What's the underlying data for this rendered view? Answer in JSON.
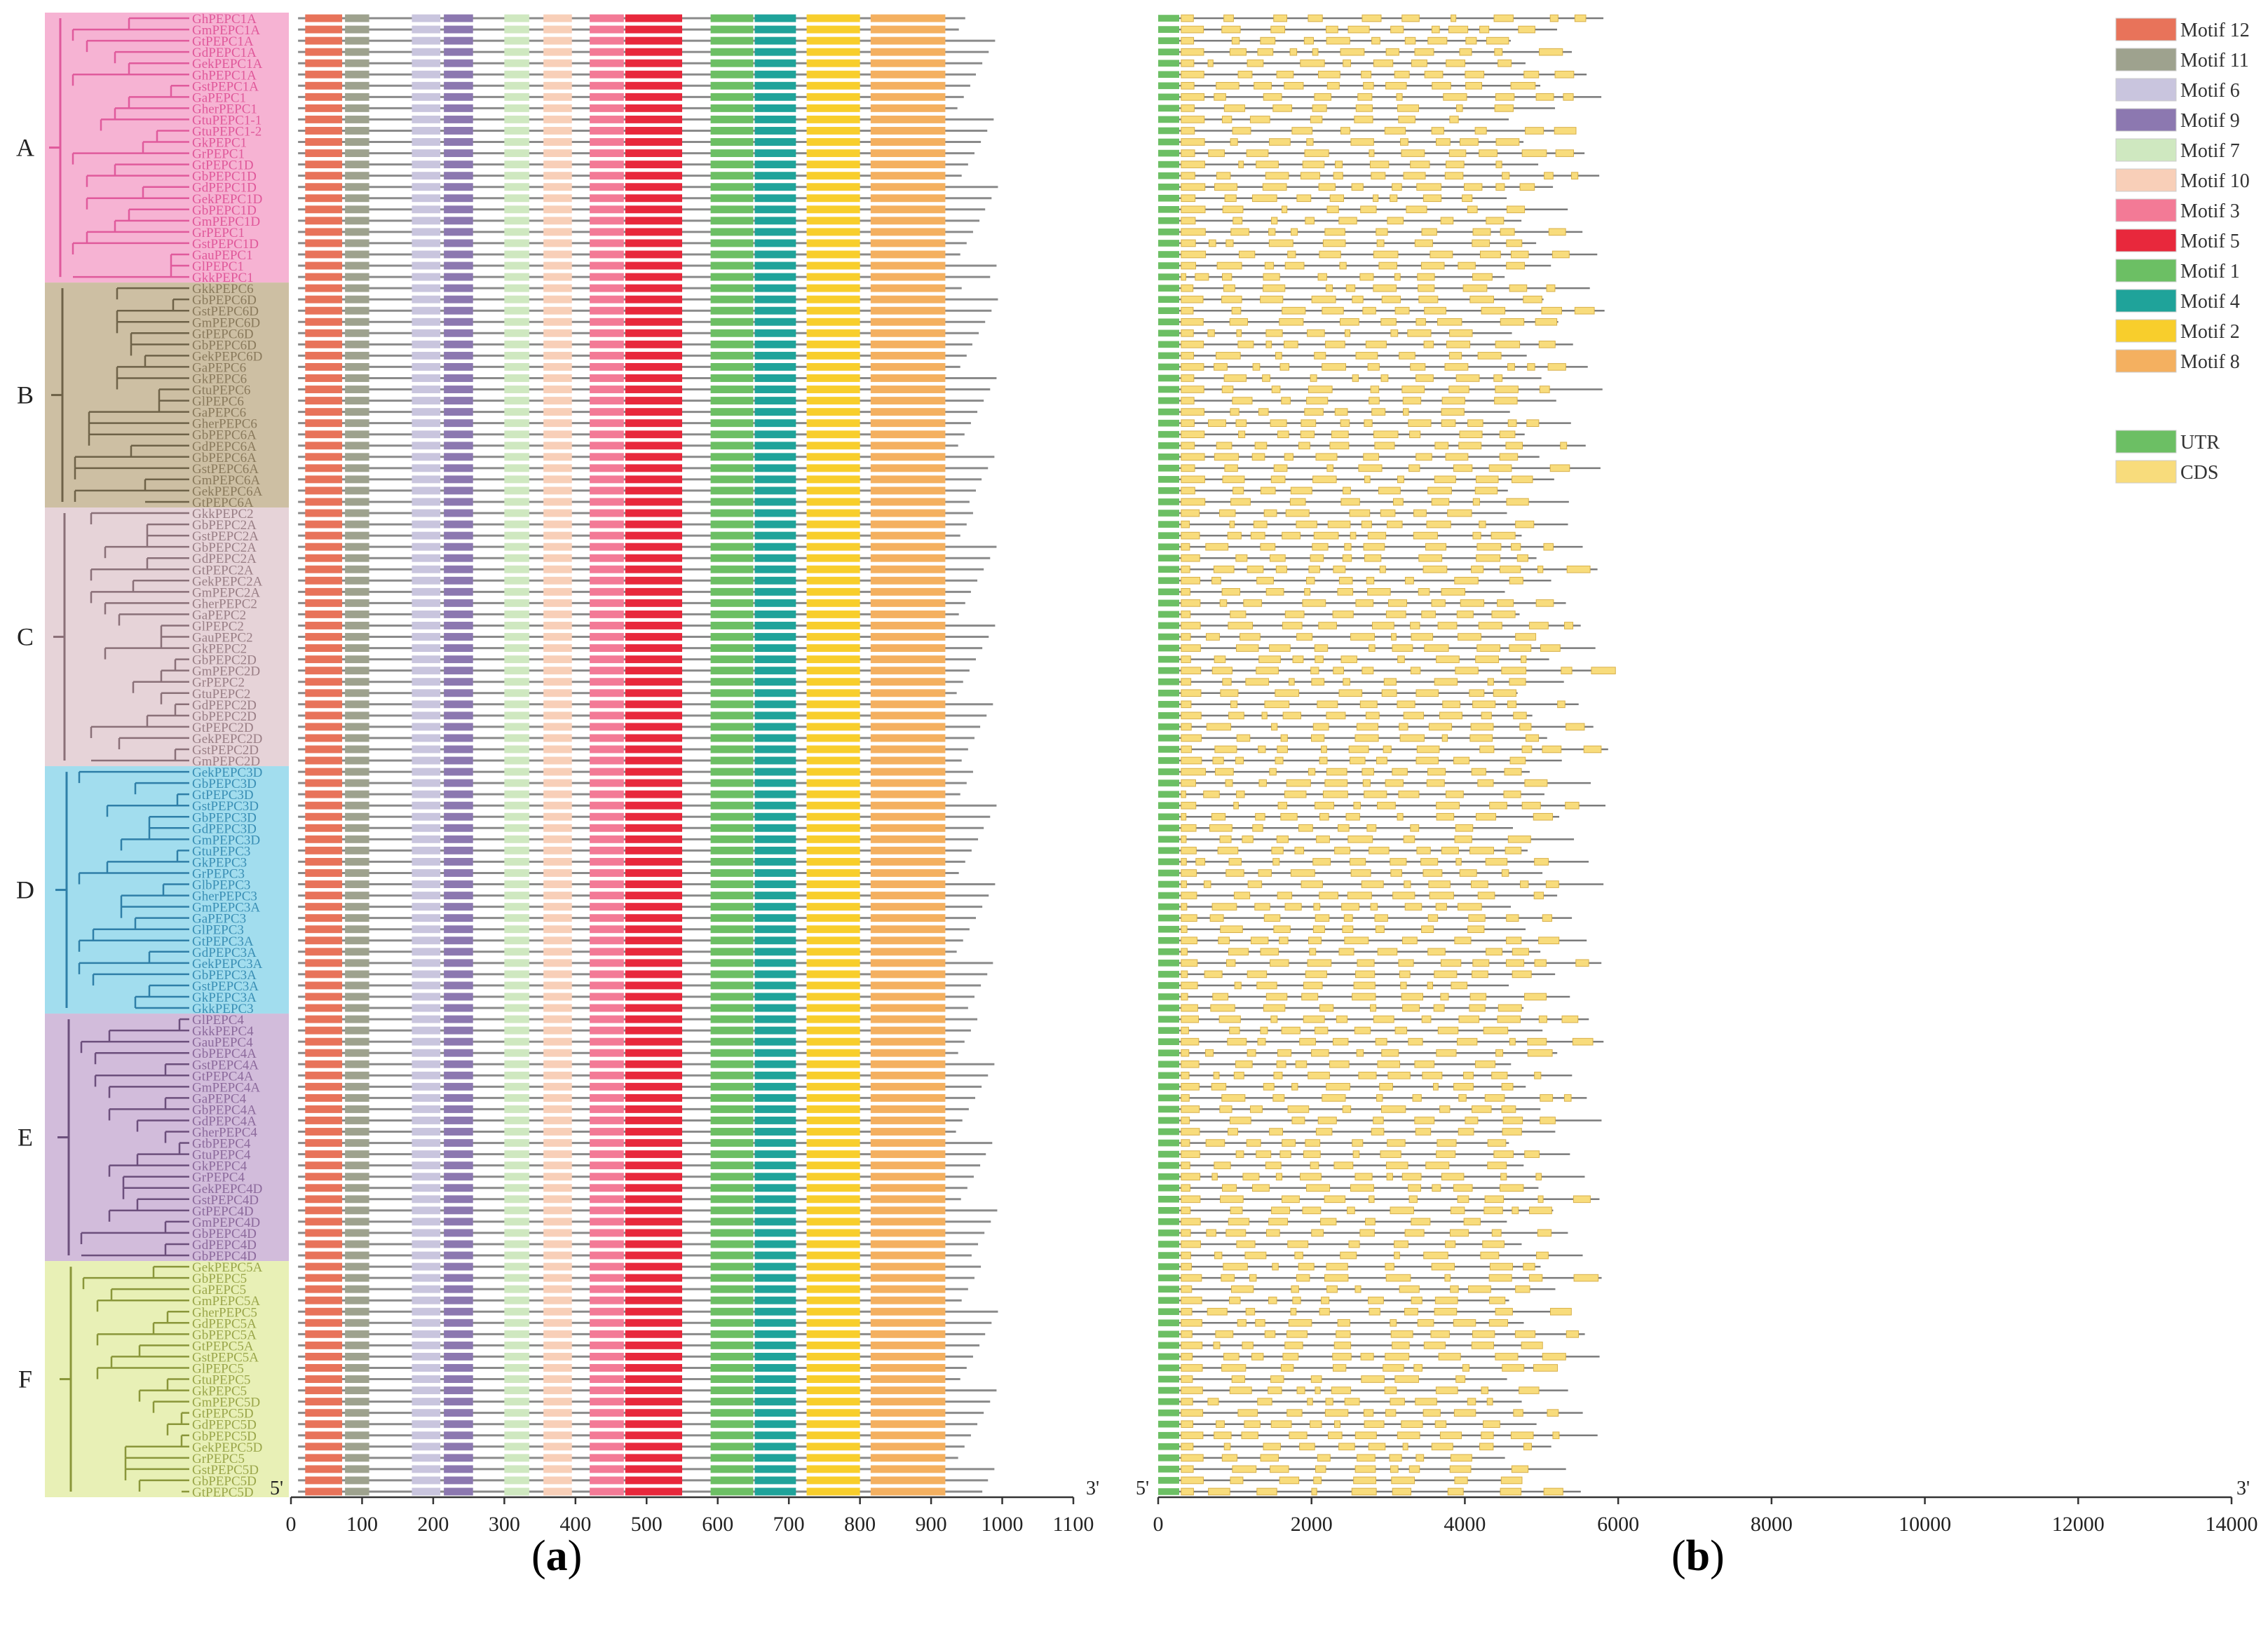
{
  "figure": {
    "panel_a_caption": {
      "open": "(",
      "letter": "a",
      "close": ")"
    },
    "panel_b_caption": {
      "open": "(",
      "letter": "b",
      "close": ")"
    },
    "end_5": "5'",
    "end_3": "3'"
  },
  "clades": [
    {
      "label": "A",
      "color": "#f6b3d3",
      "text_color": "#e0589a",
      "line_color": "#e05a9c",
      "genes": [
        "GhPEPC1A",
        "GmPEPC1A",
        "GtPEPC1A",
        "GdPEPC1A",
        "GekPEPC1A",
        "GhPEPC1A",
        "GstPEPC1A",
        "GaPEPC1",
        "GherPEPC1",
        "GtuPEPC1-1",
        "GtuPEPC1-2",
        "GkPEPC1",
        "GrPEPC1",
        "GtPEPC1D",
        "GbPEPC1D",
        "GdPEPC1D",
        "GekPEPC1D",
        "GbPEPC1D",
        "GmPEPC1D",
        "GrPEPC1",
        "GstPEPC1D",
        "GauPEPC1",
        "GlPEPC1",
        "GkkPEPC1"
      ]
    },
    {
      "label": "B",
      "color": "#cdbfa3",
      "text_color": "#8a7a5c",
      "line_color": "#6e6248",
      "genes": [
        "GkkPEPC6",
        "GbPEPC6D",
        "GstPEPC6D",
        "GmPEPC6D",
        "GtPEPC6D",
        "GbPEPC6D",
        "GekPEPC6D",
        "GaPEPC6",
        "GkPEPC6",
        "GtuPEPC6",
        "GlPEPC6",
        "GaPEPC6",
        "GherPEPC6",
        "GbPEPC6A",
        "GdPEPC6A",
        "GbPEPC6A",
        "GstPEPC6A",
        "GmPEPC6A",
        "GekPEPC6A",
        "GtPEPC6A"
      ]
    },
    {
      "label": "C",
      "color": "#e6d3d8",
      "text_color": "#9a7f86",
      "line_color": "#8a7078",
      "genes": [
        "GkkPEPC2",
        "GbPEPC2A",
        "GstPEPC2A",
        "GbPEPC2A",
        "GdPEPC2A",
        "GtPEPC2A",
        "GekPEPC2A",
        "GmPEPC2A",
        "GherPEPC2",
        "GaPEPC2",
        "GlPEPC2",
        "GauPEPC2",
        "GkPEPC2",
        "GbPEPC2D",
        "GmPEPC2D",
        "GrPEPC2",
        "GtuPEPC2",
        "GdPEPC2D",
        "GbPEPC2D",
        "GtPEPC2D",
        "GekPEPC2D",
        "GstPEPC2D",
        "GmPEPC2D"
      ]
    },
    {
      "label": "D",
      "color": "#a2ddee",
      "text_color": "#3a8fb5",
      "line_color": "#2f7fa8",
      "genes": [
        "GekPEPC3D",
        "GbPEPC3D",
        "GtPEPC3D",
        "GstPEPC3D",
        "GbPEPC3D",
        "GdPEPC3D",
        "GmPEPC3D",
        "GtuPEPC3",
        "GkPEPC3",
        "GrPEPC3",
        "GlbPEPC3",
        "GherPEPC3",
        "GmPEPC3A",
        "GaPEPC3",
        "GlPEPC3",
        "GtPEPC3A",
        "GdPEPC3A",
        "GekPEPC3A",
        "GbPEPC3A",
        "GstPEPC3A",
        "GkPEPC3A",
        "GkkPEPC3"
      ]
    },
    {
      "label": "E",
      "color": "#d2bcdb",
      "text_color": "#8c6a9c",
      "line_color": "#6c4f7c",
      "genes": [
        "GlPEPC4",
        "GkkPEPC4",
        "GauPEPC4",
        "GbPEPC4A",
        "GstPEPC4A",
        "GtPEPC4A",
        "GmPEPC4A",
        "GaPEPC4",
        "GbPEPC4A",
        "GdPEPC4A",
        "GherPEPC4",
        "GtbPEPC4",
        "GtuPEPC4",
        "GkPEPC4",
        "GrPEPC4",
        "GekPEPC4D",
        "GstPEPC4D",
        "GtPEPC4D",
        "GmPEPC4D",
        "GbPEPC4D",
        "GdPEPC4D",
        "GbPEPC4D"
      ]
    },
    {
      "label": "F",
      "color": "#e8f0b6",
      "text_color": "#9aa64a",
      "line_color": "#8a963a",
      "genes": [
        "GekPEPC5A",
        "GbPEPC5",
        "GaPEPC5",
        "GmPEPC5A",
        "GherPEPC5",
        "GdPEPC5A",
        "GbPEPC5A",
        "GtPEPC5A",
        "GstPEPC5A",
        "GlPEPC5",
        "GtuPEPC5",
        "GkPEPC5",
        "GmPEPC5D",
        "GtPEPC5D",
        "GdPEPC5D",
        "GbPEPC5D",
        "GekPEPC5D",
        "GrPEPC5",
        "GstPEPC5D",
        "GbPEPC5D",
        "GtPEPC5D"
      ]
    }
  ],
  "motif_legend": [
    {
      "name": "Motif 12",
      "color": "#e8735a"
    },
    {
      "name": "Motif 11",
      "color": "#9ea28e"
    },
    {
      "name": "Motif 6",
      "color": "#c9c5de"
    },
    {
      "name": "Motif 9",
      "color": "#8c78b0"
    },
    {
      "name": "Motif 7",
      "color": "#cfe8c0"
    },
    {
      "name": "Motif 10",
      "color": "#f8cfb8"
    },
    {
      "name": "Motif 3",
      "color": "#f37a96"
    },
    {
      "name": "Motif 5",
      "color": "#e8283c"
    },
    {
      "name": "Motif 1",
      "color": "#6cbf64"
    },
    {
      "name": "Motif 4",
      "color": "#1fa39a"
    },
    {
      "name": "Motif 2",
      "color": "#f8ce2c"
    },
    {
      "name": "Motif 8",
      "color": "#f4b060"
    }
  ],
  "structure_legend": [
    {
      "name": "UTR",
      "color": "#6cbf64"
    },
    {
      "name": "CDS",
      "color": "#f8dc7c"
    }
  ],
  "axis_a": {
    "min": 0,
    "max": 1100,
    "ticks": [
      "0",
      "100",
      "200",
      "300",
      "400",
      "500",
      "600",
      "700",
      "800",
      "900",
      "1000",
      "1100"
    ]
  },
  "axis_b": {
    "min": 0,
    "max": 14000,
    "ticks": [
      "0",
      "2000",
      "4000",
      "6000",
      "8000",
      "10000",
      "12000",
      "14000"
    ]
  },
  "motif_positions": [
    {
      "motif": "Motif 12",
      "start": 20,
      "end": 72
    },
    {
      "motif": "Motif 11",
      "start": 76,
      "end": 110
    },
    {
      "motif": "Motif 6",
      "start": 170,
      "end": 210
    },
    {
      "motif": "Motif 9",
      "start": 215,
      "end": 256
    },
    {
      "motif": "Motif 7",
      "start": 300,
      "end": 335
    },
    {
      "motif": "Motif 10",
      "start": 355,
      "end": 395
    },
    {
      "motif": "Motif 3",
      "start": 420,
      "end": 468
    },
    {
      "motif": "Motif 5",
      "start": 470,
      "end": 550
    },
    {
      "motif": "Motif 1",
      "start": 590,
      "end": 650
    },
    {
      "motif": "Motif 4",
      "start": 652,
      "end": 710
    },
    {
      "motif": "Motif 2",
      "start": 725,
      "end": 800
    },
    {
      "motif": "Motif 8",
      "start": 815,
      "end": 920
    }
  ],
  "protein_length": 965
}
